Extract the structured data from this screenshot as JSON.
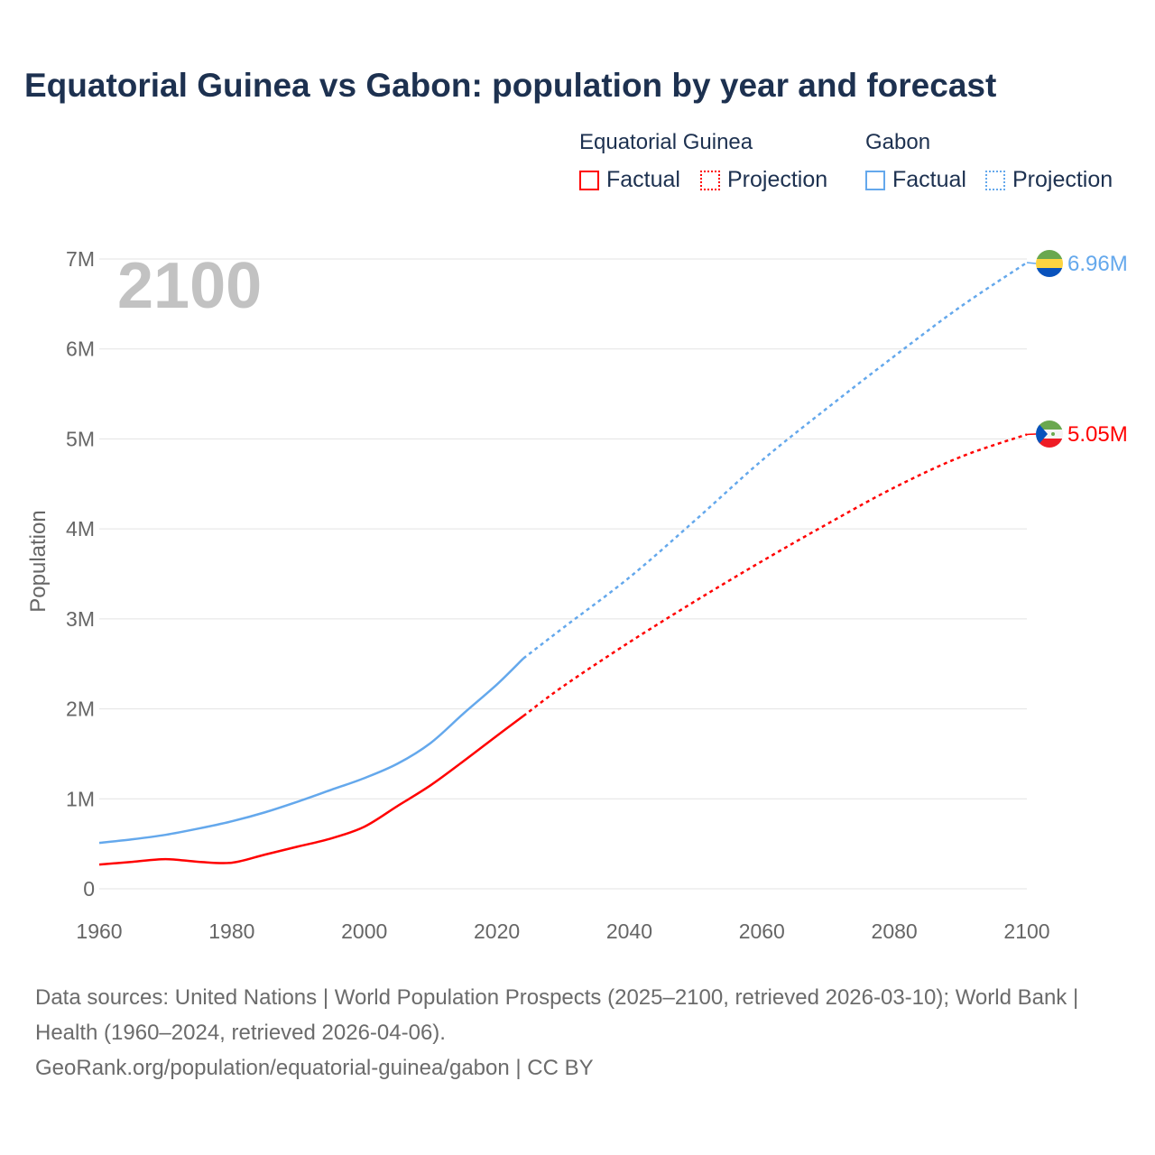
{
  "chart_data": {
    "type": "line",
    "title": "Equatorial Guinea vs Gabon: population by year and forecast",
    "ylabel": "Population",
    "xlabel": "",
    "xlim": [
      1960,
      2100
    ],
    "ylim": [
      0,
      7000000
    ],
    "x_ticks": [
      "1960",
      "1980",
      "2000",
      "2020",
      "2040",
      "2060",
      "2080",
      "2100"
    ],
    "y_ticks": [
      "0",
      "1M",
      "2M",
      "3M",
      "4M",
      "5M",
      "6M",
      "7M"
    ],
    "year_watermark": "2100",
    "legend": {
      "groups": [
        {
          "name": "Equatorial Guinea",
          "items": [
            "Factual",
            "Projection"
          ],
          "color": "#ff0000"
        },
        {
          "name": "Gabon",
          "items": [
            "Factual",
            "Projection"
          ],
          "color": "#64a8ec"
        }
      ],
      "placement": "top-right"
    },
    "series": [
      {
        "name": "Gabon",
        "color": "#64a8ec",
        "end_label": "6.96M",
        "flag": "gabon-flag",
        "factual": {
          "x": [
            1960,
            1965,
            1970,
            1975,
            1980,
            1985,
            1990,
            1995,
            2000,
            2005,
            2010,
            2015,
            2020,
            2024
          ],
          "y": [
            0.51,
            0.55,
            0.6,
            0.67,
            0.75,
            0.85,
            0.97,
            1.1,
            1.23,
            1.39,
            1.62,
            1.95,
            2.27,
            2.56
          ]
        },
        "projection": {
          "x": [
            2024,
            2030,
            2040,
            2050,
            2060,
            2070,
            2080,
            2090,
            2100
          ],
          "y": [
            2.56,
            2.9,
            3.46,
            4.1,
            4.76,
            5.35,
            5.92,
            6.47,
            6.96
          ]
        }
      },
      {
        "name": "Equatorial Guinea",
        "color": "#ff0000",
        "end_label": "5.05M",
        "flag": "equatorial-guinea-flag",
        "factual": {
          "x": [
            1960,
            1965,
            1970,
            1975,
            1980,
            1985,
            1990,
            1995,
            2000,
            2005,
            2010,
            2015,
            2020,
            2024
          ],
          "y": [
            0.27,
            0.3,
            0.33,
            0.3,
            0.29,
            0.38,
            0.47,
            0.56,
            0.69,
            0.92,
            1.15,
            1.42,
            1.7,
            1.92
          ]
        },
        "projection": {
          "x": [
            2024,
            2030,
            2040,
            2050,
            2060,
            2070,
            2080,
            2090,
            2100
          ],
          "y": [
            1.92,
            2.25,
            2.74,
            3.2,
            3.64,
            4.06,
            4.46,
            4.8,
            5.05
          ]
        }
      }
    ]
  },
  "footer": {
    "sources": "Data sources: United Nations | World Population Prospects (2025–2100, retrieved 2026-03-10); World Bank | Health (1960–2024, retrieved 2026-04-06).",
    "link": "GeoRank.org/population/equatorial-guinea/gabon | CC BY"
  }
}
